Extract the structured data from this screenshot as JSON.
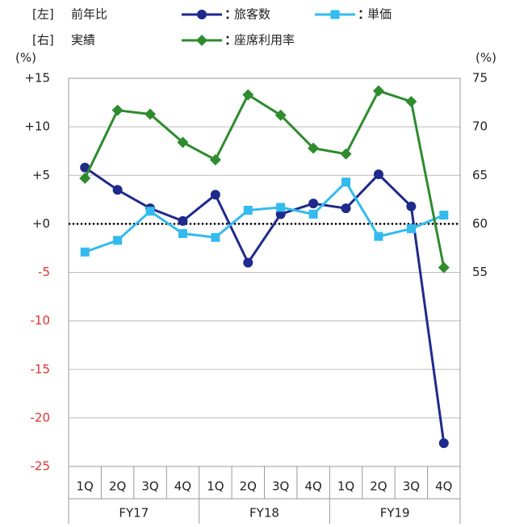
{
  "chart_data": {
    "type": "line",
    "legend_groups": [
      {
        "side": "[左]",
        "label": "前年比"
      },
      {
        "side": "[右]",
        "label": "実績"
      }
    ],
    "y_unit": "(%)",
    "y2_unit": "(%)",
    "categories": [
      "1Q",
      "2Q",
      "3Q",
      "4Q",
      "1Q",
      "2Q",
      "3Q",
      "4Q",
      "1Q",
      "2Q",
      "3Q",
      "4Q"
    ],
    "groups": [
      "FY17",
      "FY18",
      "FY19"
    ],
    "series": [
      {
        "name": "旅客数",
        "color": "#1f2a8c",
        "marker": "circle",
        "values": [
          5.8,
          3.5,
          1.6,
          0.3,
          3.0,
          -4.0,
          1.0,
          2.1,
          1.6,
          5.1,
          1.8,
          -22.6
        ]
      },
      {
        "name": "単価",
        "color": "#33bbee",
        "marker": "square",
        "values": [
          -2.9,
          -1.7,
          1.3,
          -1.0,
          -1.4,
          1.4,
          1.7,
          1.0,
          4.3,
          -1.3,
          -0.5,
          0.9
        ]
      },
      {
        "name": "座席利用率",
        "color": "#2e8b2e",
        "marker": "diamond",
        "axis": "y2",
        "values": [
          64.7,
          71.7,
          71.3,
          68.4,
          66.6,
          73.3,
          71.2,
          67.8,
          67.2,
          73.7,
          72.6,
          55.5
        ]
      }
    ],
    "ylim": [
      -25,
      15
    ],
    "yticks": [
      {
        "value": 15,
        "label": "+15"
      },
      {
        "value": 10,
        "label": "+10"
      },
      {
        "value": 5,
        "label": "+5"
      },
      {
        "value": 0,
        "label": "+0"
      },
      -5,
      -10,
      -15,
      -20,
      -25
    ],
    "y2lim": [
      35,
      75
    ],
    "y2ticks": [
      55,
      60,
      65,
      70,
      75
    ],
    "negative_tick_color": "#e03030",
    "grid": true,
    "zero_line": "dotted"
  }
}
